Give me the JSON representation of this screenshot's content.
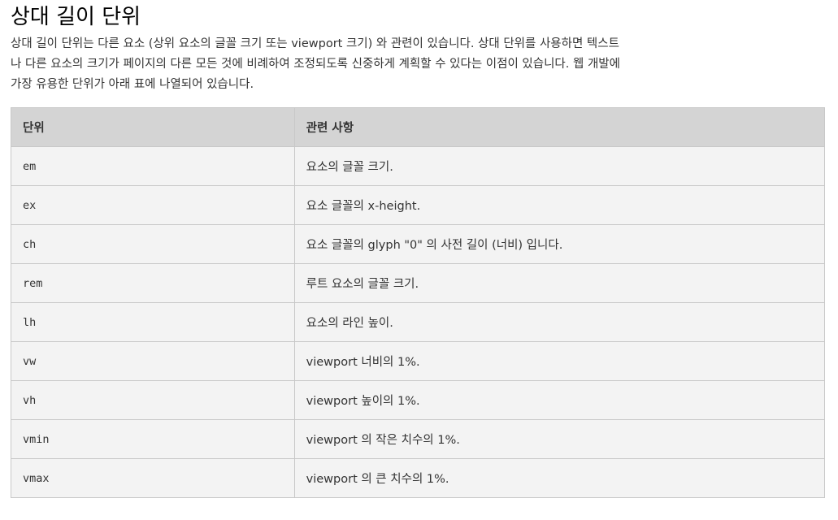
{
  "heading": "상대 길이 단위",
  "intro": "상대 길이 단위는 다른 요소 (상위 요소의 글꼴 크기 또는 viewport 크기) 와 관련이 있습니다. 상대 단위를 사용하면 텍스트나 다른 요소의 크기가 페이지의 다른 모든 것에 비례하여 조정되도록 신중하게 계획할 수 있다는 이점이 있습니다. 웹 개발에 가장 유용한 단위가 아래 표에 나열되어 있습니다.",
  "table": {
    "headers": [
      "단위",
      "관련 사항"
    ],
    "rows": [
      {
        "unit": "em",
        "desc": "요소의 글꼴 크기."
      },
      {
        "unit": "ex",
        "desc": "요소 글꼴의 x-height."
      },
      {
        "unit": "ch",
        "desc": "요소 글꼴의 glyph \"0\" 의 사전 길이 (너비) 입니다."
      },
      {
        "unit": "rem",
        "desc": "루트 요소의 글꼴 크기."
      },
      {
        "unit": "lh",
        "desc": "요소의 라인 높이."
      },
      {
        "unit": "vw",
        "desc": "viewport 너비의 1%."
      },
      {
        "unit": "vh",
        "desc": "viewport 높이의 1%."
      },
      {
        "unit": "vmin",
        "desc": "viewport 의 작은 치수의 1%."
      },
      {
        "unit": "vmax",
        "desc": "viewport 의 큰 치수의 1%."
      }
    ]
  }
}
